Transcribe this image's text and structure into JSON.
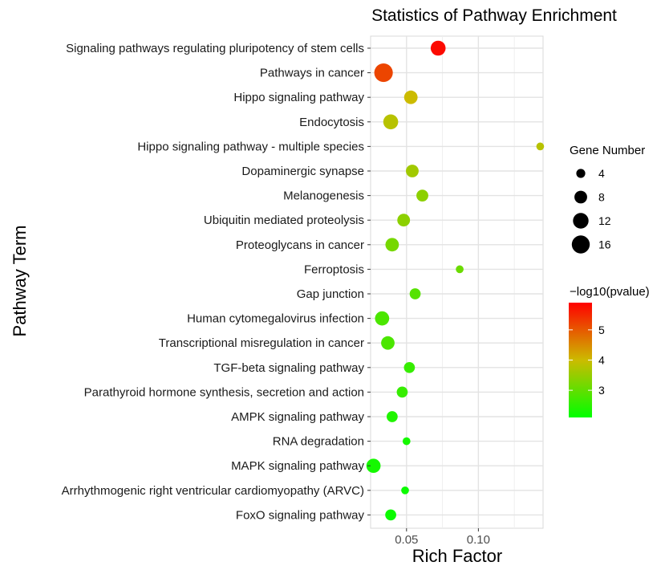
{
  "chart_data": {
    "type": "scatter",
    "title": "Statistics of Pathway Enrichment",
    "xlabel": "Rich Factor",
    "ylabel": "Pathway Term",
    "xlim": [
      0.025,
      0.145
    ],
    "xticks": [
      0.05,
      0.1
    ],
    "xtick_labels": [
      "0.05",
      "0.10"
    ],
    "grid": true,
    "terms": [
      {
        "term": "Signaling pathways regulating pluripotency of stem cells",
        "rich_factor": 0.072,
        "gene_number": 11,
        "neglog10p": 5.8
      },
      {
        "term": "Pathways in cancer",
        "rich_factor": 0.034,
        "gene_number": 17,
        "neglog10p": 5.2
      },
      {
        "term": "Hippo signaling pathway",
        "rich_factor": 0.053,
        "gene_number": 9,
        "neglog10p": 4.0
      },
      {
        "term": "Endocytosis",
        "rich_factor": 0.039,
        "gene_number": 11,
        "neglog10p": 3.8
      },
      {
        "term": "Hippo signaling pathway - multiple species",
        "rich_factor": 0.143,
        "gene_number": 3,
        "neglog10p": 3.8
      },
      {
        "term": "Dopaminergic synapse",
        "rich_factor": 0.054,
        "gene_number": 8,
        "neglog10p": 3.6
      },
      {
        "term": "Melanogenesis",
        "rich_factor": 0.061,
        "gene_number": 7,
        "neglog10p": 3.4
      },
      {
        "term": "Ubiquitin mediated proteolysis",
        "rich_factor": 0.048,
        "gene_number": 8,
        "neglog10p": 3.4
      },
      {
        "term": "Proteoglycans in cancer",
        "rich_factor": 0.04,
        "gene_number": 9,
        "neglog10p": 3.2
      },
      {
        "term": "Ferroptosis",
        "rich_factor": 0.087,
        "gene_number": 3,
        "neglog10p": 3.1
      },
      {
        "term": "Gap junction",
        "rich_factor": 0.056,
        "gene_number": 6,
        "neglog10p": 2.9
      },
      {
        "term": "Human cytomegalovirus infection",
        "rich_factor": 0.033,
        "gene_number": 10,
        "neglog10p": 2.8
      },
      {
        "term": "Transcriptional misregulation in cancer",
        "rich_factor": 0.037,
        "gene_number": 9,
        "neglog10p": 2.8
      },
      {
        "term": "TGF-beta signaling pathway",
        "rich_factor": 0.052,
        "gene_number": 6,
        "neglog10p": 2.6
      },
      {
        "term": "Parathyroid hormone synthesis, secretion and action",
        "rich_factor": 0.047,
        "gene_number": 6,
        "neglog10p": 2.6
      },
      {
        "term": "AMPK signaling pathway",
        "rich_factor": 0.04,
        "gene_number": 6,
        "neglog10p": 2.4
      },
      {
        "term": "RNA degradation",
        "rich_factor": 0.05,
        "gene_number": 3,
        "neglog10p": 2.3
      },
      {
        "term": "MAPK signaling pathway",
        "rich_factor": 0.027,
        "gene_number": 10,
        "neglog10p": 2.3
      },
      {
        "term": "Arrhythmogenic right ventricular cardiomyopathy (ARVC)",
        "rich_factor": 0.049,
        "gene_number": 3,
        "neglog10p": 2.2
      },
      {
        "term": "FoxO signaling pathway",
        "rich_factor": 0.039,
        "gene_number": 6,
        "neglog10p": 2.2
      }
    ],
    "size_legend": {
      "title": "Gene Number",
      "values": [
        4,
        8,
        12,
        16
      ],
      "labels": [
        "4",
        "8",
        "12",
        "16"
      ]
    },
    "color_legend": {
      "title": "−log10(pvalue)",
      "range": [
        2.1,
        5.9
      ],
      "ticks": [
        3,
        4,
        5
      ],
      "tick_labels": [
        "3",
        "4",
        "5"
      ],
      "low_color": "#00ff00",
      "mid_color": "#ccbb00",
      "high_color": "#ff0000"
    }
  }
}
